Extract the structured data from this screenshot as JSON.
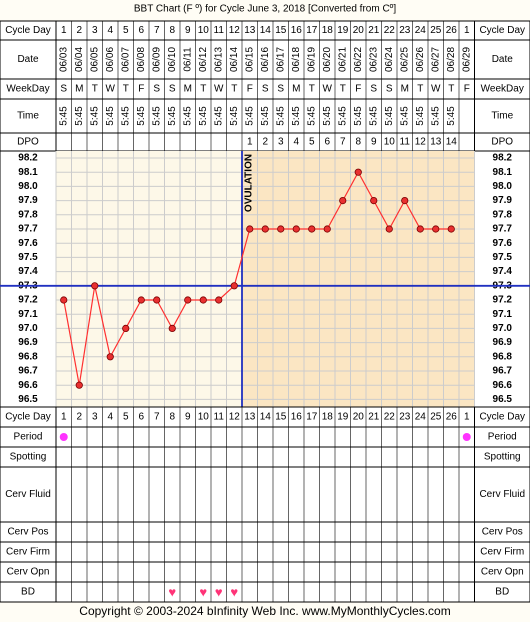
{
  "title": "BBT Chart (F º) for Cycle June 3, 2018  [Converted from Cº]",
  "footer": "Copyright © 2003-2024 bInfinity Web Inc.    www.MyMonthlyCycles.com",
  "colors": {
    "chart_bg": "#fdf8e8",
    "post_ovulation_bg": "#fbe6c3",
    "grid": "#cccccc",
    "line": "#ff3030",
    "point_fill": "#e83030",
    "coverline": "#2030c0",
    "ovulation_line": "#2030c0",
    "period": "#ff33ff",
    "heart": "#ff3377",
    "header_bg": "#ffffff",
    "border": "#000000"
  },
  "row_labels": {
    "cycle_day": "Cycle Day",
    "date": "Date",
    "weekday": "WeekDay",
    "time": "Time",
    "dpo": "DPO",
    "period": "Period",
    "spotting": "Spotting",
    "cerv_fluid": "Cerv Fluid",
    "cerv_pos": "Cerv Pos",
    "cerv_firm": "Cerv Firm",
    "cerv_opn": "Cerv Opn",
    "bd": "BD"
  },
  "chart_data": {
    "type": "line",
    "cycle_days": [
      "1",
      "2",
      "3",
      "4",
      "5",
      "6",
      "7",
      "8",
      "9",
      "10",
      "11",
      "12",
      "13",
      "14",
      "15",
      "16",
      "17",
      "18",
      "19",
      "20",
      "21",
      "22",
      "23",
      "24",
      "25",
      "26",
      "1"
    ],
    "dates": [
      "06/03",
      "06/04",
      "06/05",
      "06/06",
      "06/07",
      "06/08",
      "06/09",
      "06/10",
      "06/11",
      "06/12",
      "06/13",
      "06/14",
      "06/15",
      "06/16",
      "06/17",
      "06/18",
      "06/19",
      "06/20",
      "06/21",
      "06/22",
      "06/23",
      "06/24",
      "06/25",
      "06/26",
      "06/27",
      "06/28",
      "06/29"
    ],
    "weekdays": [
      "S",
      "M",
      "T",
      "W",
      "T",
      "F",
      "S",
      "S",
      "M",
      "T",
      "W",
      "T",
      "F",
      "S",
      "S",
      "M",
      "T",
      "W",
      "T",
      "F",
      "S",
      "S",
      "M",
      "T",
      "W",
      "T",
      "F"
    ],
    "times": [
      "5:45",
      "5:45",
      "5:45",
      "5:45",
      "5:45",
      "5:45",
      "5:45",
      "5:45",
      "5:45",
      "5:45",
      "5:45",
      "5:45",
      "5:45",
      "5:45",
      "5:45",
      "5:45",
      "5:45",
      "5:45",
      "5:45",
      "5:45",
      "5:45",
      "5:45",
      "5:45",
      "5:45",
      "5:45",
      "5:45",
      ""
    ],
    "dpo": [
      "",
      "",
      "",
      "",
      "",
      "",
      "",
      "",
      "",
      "",
      "",
      "",
      "1",
      "2",
      "3",
      "4",
      "5",
      "6",
      "7",
      "8",
      "9",
      "10",
      "11",
      "12",
      "13",
      "14",
      ""
    ],
    "temperatures": [
      97.2,
      96.6,
      97.3,
      96.8,
      97.0,
      97.2,
      97.2,
      97.0,
      97.2,
      97.2,
      97.2,
      97.3,
      97.7,
      97.7,
      97.7,
      97.7,
      97.7,
      97.7,
      97.9,
      98.1,
      97.9,
      97.7,
      97.9,
      97.7,
      97.7,
      97.7,
      null
    ],
    "y_ticks": [
      "98.2",
      "98.1",
      "98.0",
      "97.9",
      "97.8",
      "97.7",
      "97.6",
      "97.5",
      "97.4",
      "97.3",
      "97.2",
      "97.1",
      "97.0",
      "96.9",
      "96.8",
      "96.7",
      "96.6",
      "96.5"
    ],
    "ylim": [
      96.5,
      98.2
    ],
    "coverline": 97.3,
    "ovulation_day_index": 11,
    "ovulation_label": "OVULATION",
    "period_days": [
      0,
      26
    ],
    "bd_days": [
      7,
      9,
      10,
      11
    ],
    "grid": true
  }
}
